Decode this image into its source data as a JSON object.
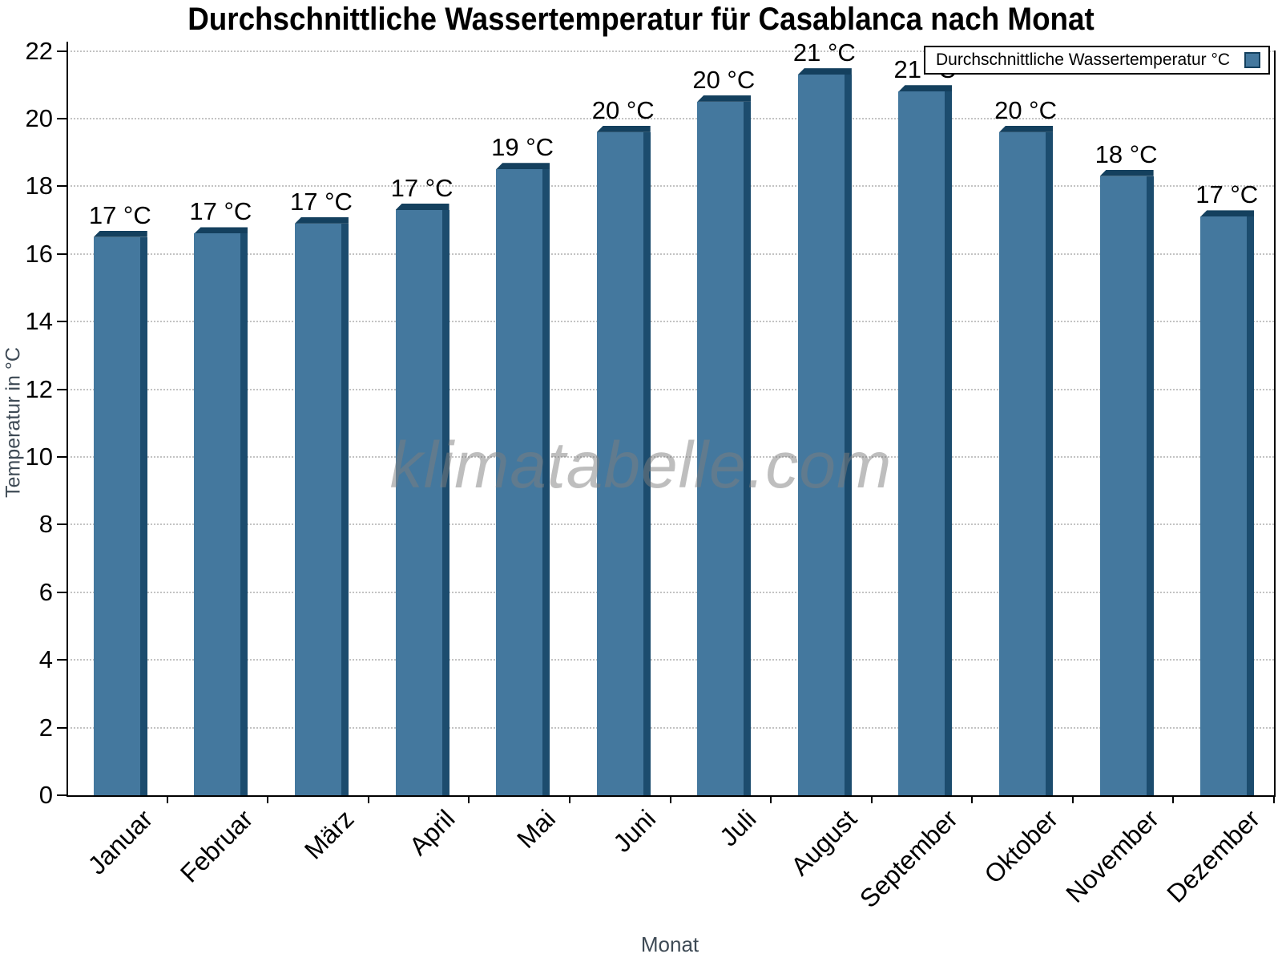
{
  "chart_data": {
    "type": "bar",
    "title": "Durchschnittliche Wassertemperatur für Casablanca nach Monat",
    "xlabel": "Monat",
    "ylabel": "Temperatur in °C",
    "watermark": "klimatabelle.com",
    "legend": {
      "label": "Durchschnittliche Wassertemperatur °C",
      "position": "top-right"
    },
    "categories": [
      "Januar",
      "Februar",
      "März",
      "April",
      "Mai",
      "Juni",
      "Juli",
      "August",
      "September",
      "Oktober",
      "November",
      "Dezember"
    ],
    "values": [
      16.5,
      16.6,
      16.9,
      17.3,
      18.5,
      19.6,
      20.5,
      21.3,
      20.8,
      19.6,
      18.3,
      17.1
    ],
    "bar_labels": [
      "17 °C",
      "17 °C",
      "17 °C",
      "17 °C",
      "19 °C",
      "20 °C",
      "20 °C",
      "21 °C",
      "21 °C",
      "20 °C",
      "18 °C",
      "17 °C"
    ],
    "ylim": [
      0,
      22
    ],
    "ytick_step": 2,
    "grid": "dotted-horizontal",
    "colors": {
      "bar_face": "#44789E",
      "bar_side": "#1C4C6E",
      "bar_top": "#14405E",
      "grid": "#c3c3c3",
      "axis": "#000000",
      "axis_title_text": "#3e4a55",
      "tick_text": "#000000",
      "watermark_text": "#7d7d7d",
      "background": "#ffffff"
    }
  }
}
